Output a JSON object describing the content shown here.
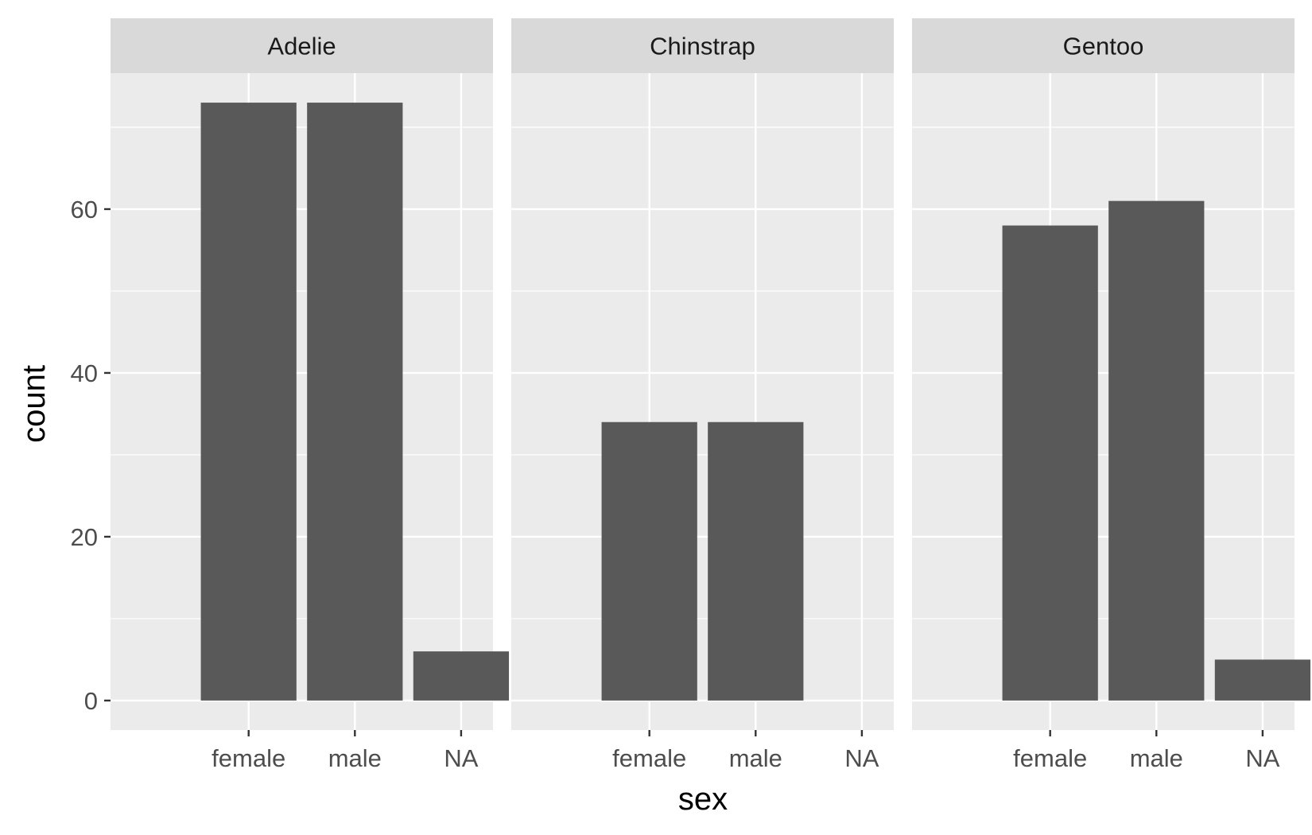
{
  "chart_data": {
    "type": "bar",
    "facet_by": "species",
    "facets": [
      {
        "name": "Adelie",
        "categories": [
          "female",
          "male",
          "NA"
        ],
        "values": [
          73,
          73,
          6
        ]
      },
      {
        "name": "Chinstrap",
        "categories": [
          "female",
          "male",
          "NA"
        ],
        "values": [
          34,
          34,
          0
        ]
      },
      {
        "name": "Gentoo",
        "categories": [
          "female",
          "male",
          "NA"
        ],
        "values": [
          58,
          61,
          5
        ]
      }
    ],
    "xlabel": "sex",
    "ylabel": "count",
    "ylim": [
      -3.6,
      76.6
    ],
    "y_ticks": [
      0,
      20,
      40,
      60
    ],
    "y_tick_labels": [
      "0",
      "20",
      "40",
      "60"
    ],
    "grid": true,
    "legend": "none",
    "colors": {
      "bar": "#595959",
      "panel_background": "#ebebeb",
      "strip_background": "#d9d9d9",
      "grid": "#ffffff",
      "axis_tick": "#333333",
      "tick_label": "#4d4d4d"
    }
  }
}
